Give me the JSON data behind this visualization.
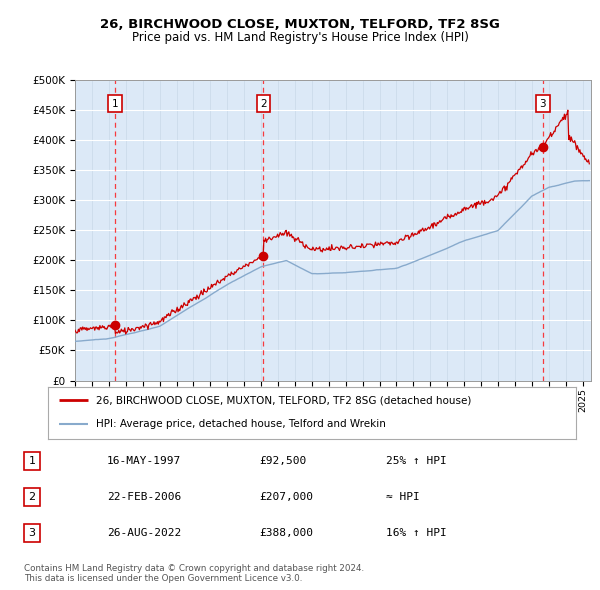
{
  "title": "26, BIRCHWOOD CLOSE, MUXTON, TELFORD, TF2 8SG",
  "subtitle": "Price paid vs. HM Land Registry's House Price Index (HPI)",
  "background_color": "#ffffff",
  "plot_bg_color": "#dce9f7",
  "ylim": [
    0,
    500000
  ],
  "yticks": [
    0,
    50000,
    100000,
    150000,
    200000,
    250000,
    300000,
    350000,
    400000,
    450000,
    500000
  ],
  "ytick_labels": [
    "£0",
    "£50K",
    "£100K",
    "£150K",
    "£200K",
    "£250K",
    "£300K",
    "£350K",
    "£400K",
    "£450K",
    "£500K"
  ],
  "xlim": [
    1995,
    2025.5
  ],
  "xticks": [
    1995,
    1996,
    1997,
    1998,
    1999,
    2000,
    2001,
    2002,
    2003,
    2004,
    2005,
    2006,
    2007,
    2008,
    2009,
    2010,
    2011,
    2012,
    2013,
    2014,
    2015,
    2016,
    2017,
    2018,
    2019,
    2020,
    2021,
    2022,
    2023,
    2024,
    2025
  ],
  "purchases": [
    {
      "date_num": 1997.37,
      "price": 92500,
      "label": "1"
    },
    {
      "date_num": 2006.14,
      "price": 207000,
      "label": "2"
    },
    {
      "date_num": 2022.65,
      "price": 388000,
      "label": "3"
    }
  ],
  "legend_line1": "26, BIRCHWOOD CLOSE, MUXTON, TELFORD, TF2 8SG (detached house)",
  "legend_line2": "HPI: Average price, detached house, Telford and Wrekin",
  "legend_color1": "#cc0000",
  "legend_color2": "#88aacc",
  "table": [
    {
      "num": "1",
      "date": "16-MAY-1997",
      "price": "£92,500",
      "rel": "25% ↑ HPI"
    },
    {
      "num": "2",
      "date": "22-FEB-2006",
      "price": "£207,000",
      "rel": "≈ HPI"
    },
    {
      "num": "3",
      "date": "26-AUG-2022",
      "price": "£388,000",
      "rel": "16% ↑ HPI"
    }
  ],
  "footer": "Contains HM Land Registry data © Crown copyright and database right 2024.\nThis data is licensed under the Open Government Licence v3.0."
}
